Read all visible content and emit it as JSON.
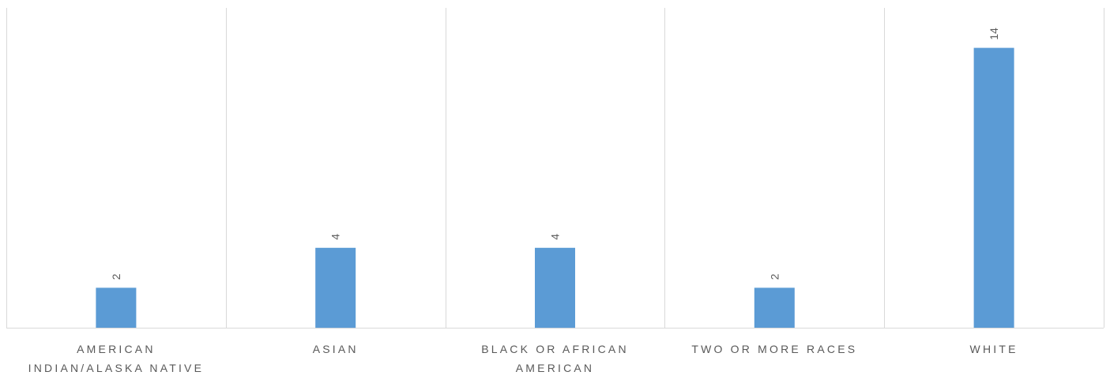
{
  "chart_data": {
    "type": "bar",
    "categories": [
      [
        "AMERICAN",
        "INDIAN/ALASKA NATIVE"
      ],
      [
        "ASIAN"
      ],
      [
        "BLACK OR AFRICAN",
        "AMERICAN"
      ],
      [
        "TWO OR MORE RACES"
      ],
      [
        "WHITE"
      ]
    ],
    "values": [
      2,
      4,
      4,
      2,
      14
    ],
    "data_labels": [
      "2",
      "4",
      "4",
      "2",
      "14"
    ],
    "title": "",
    "xlabel": "",
    "ylabel": "",
    "ylim": [
      0,
      16
    ],
    "grid": "vertical category separators",
    "legend": "none",
    "bar_color": "#5b9bd5",
    "grid_color": "#d9d9d9",
    "label_color": "#595959"
  }
}
